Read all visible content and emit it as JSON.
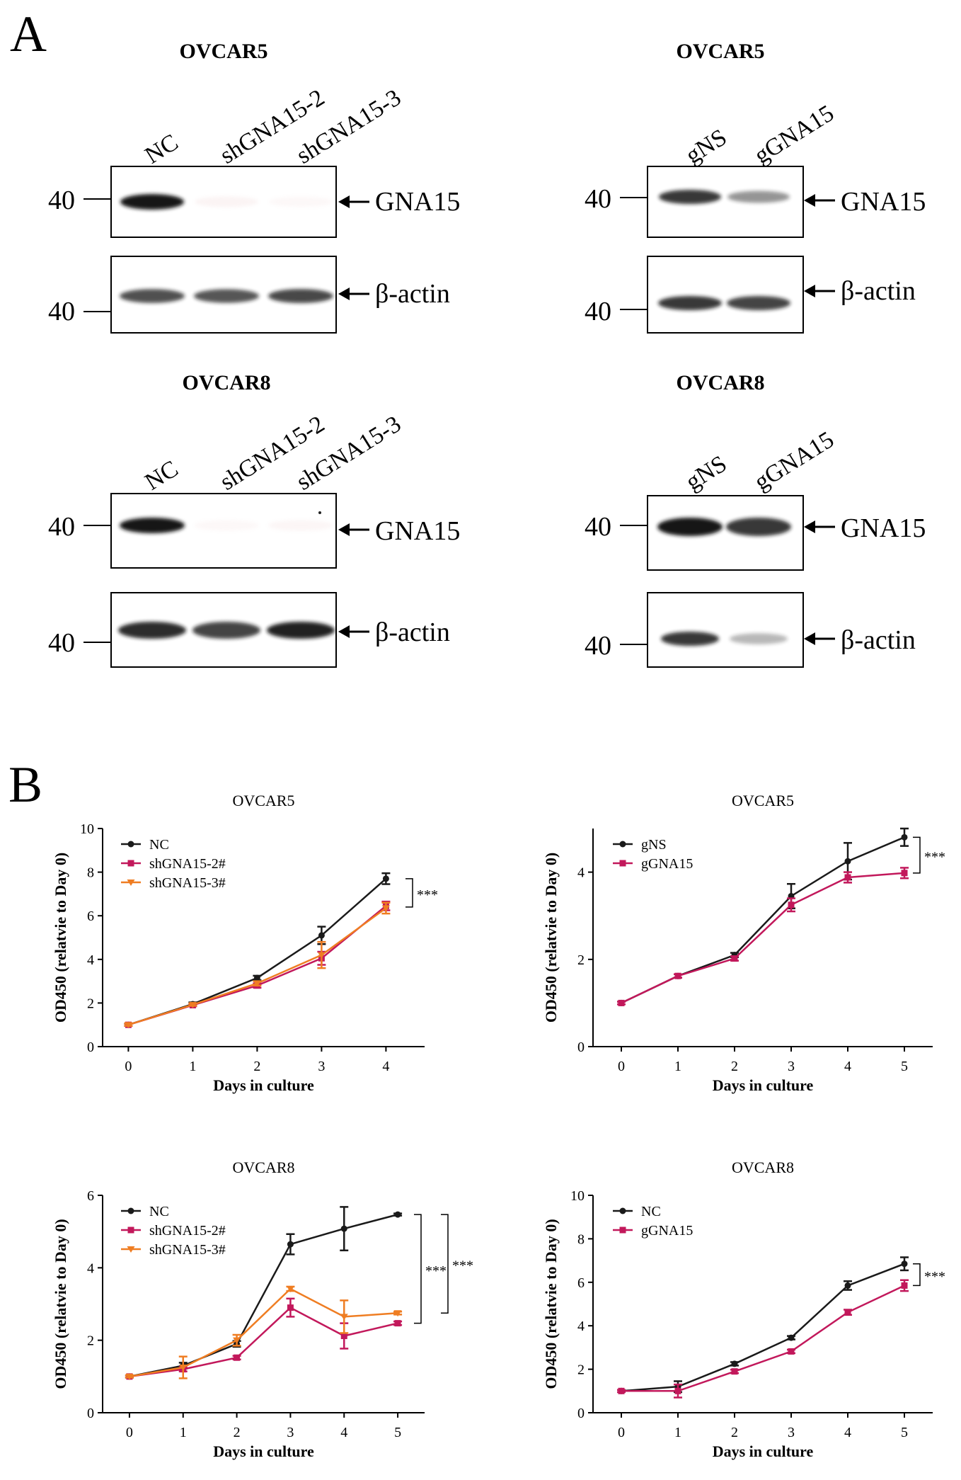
{
  "figure": {
    "panelA": {
      "letter": "A",
      "blots": [
        {
          "id": "ov5-sh",
          "title": "OVCAR5",
          "lanes": [
            "NC",
            "shGNA15-2",
            "shGNA15-3"
          ],
          "marker": "40",
          "rows": [
            {
              "target": "GNA15",
              "intensities": [
                1.0,
                0.12,
                0.03
              ]
            },
            {
              "target": "β-actin",
              "intensities": [
                0.75,
                0.72,
                0.78
              ]
            }
          ]
        },
        {
          "id": "ov5-g",
          "title": "OVCAR5",
          "lanes": [
            "gNS",
            "gGNA15"
          ],
          "marker": "40",
          "rows": [
            {
              "target": "GNA15",
              "intensities": [
                0.85,
                0.45
              ]
            },
            {
              "target": "β-actin",
              "intensities": [
                0.85,
                0.8
              ]
            }
          ]
        },
        {
          "id": "ov8-sh",
          "title": "OVCAR8",
          "lanes": [
            "NC",
            "shGNA15-2",
            "shGNA15-3"
          ],
          "marker": "40",
          "rows": [
            {
              "target": "GNA15",
              "intensities": [
                1.0,
                0.06,
                0.1
              ]
            },
            {
              "target": "β-actin",
              "intensities": [
                0.9,
                0.8,
                0.95
              ]
            }
          ]
        },
        {
          "id": "ov8-g",
          "title": "OVCAR8",
          "lanes": [
            "gNS",
            "gGNA15"
          ],
          "marker": "40",
          "rows": [
            {
              "target": "GNA15",
              "intensities": [
                1.0,
                0.85
              ]
            },
            {
              "target": "β-actin",
              "intensities": [
                0.85,
                0.3
              ]
            }
          ]
        }
      ]
    },
    "panelB": {
      "letter": "B"
    }
  },
  "chart_data": [
    {
      "type": "line",
      "title": "OVCAR5",
      "xlabel": "Days in culture",
      "ylabel": "OD450 (relatvie to Day 0)",
      "x": [
        0,
        1,
        2,
        3,
        4
      ],
      "xlim": [
        -0.4,
        4.6
      ],
      "ylim": [
        0,
        10
      ],
      "yticks": [
        0,
        2,
        4,
        6,
        8,
        10
      ],
      "series": [
        {
          "name": "NC",
          "color": "#1a1a1a",
          "marker": "circle",
          "values": [
            1.0,
            1.95,
            3.15,
            5.1,
            7.7
          ],
          "errors": [
            0.05,
            0.08,
            0.1,
            0.4,
            0.25
          ]
        },
        {
          "name": "shGNA15-2#",
          "color": "#c2185b",
          "marker": "square",
          "values": [
            1.0,
            1.9,
            2.8,
            4.05,
            6.45
          ],
          "errors": [
            0.05,
            0.05,
            0.1,
            0.3,
            0.2
          ]
        },
        {
          "name": "shGNA15-3#",
          "color": "#ef7d22",
          "marker": "triangle-down",
          "values": [
            1.0,
            1.92,
            2.9,
            4.2,
            6.35
          ],
          "errors": [
            0.05,
            0.05,
            0.1,
            0.6,
            0.25
          ]
        }
      ],
      "significance": [
        {
          "from": 7.7,
          "to": 6.4,
          "label": "***"
        }
      ]
    },
    {
      "type": "line",
      "title": "OVCAR5",
      "xlabel": "Days in culture",
      "ylabel": "OD450 (relatvie to Day 0)",
      "x": [
        0,
        1,
        2,
        3,
        4,
        5
      ],
      "xlim": [
        -0.5,
        5.5
      ],
      "ylim": [
        0,
        5
      ],
      "yticks": [
        0,
        2,
        4
      ],
      "series": [
        {
          "name": "gNS",
          "color": "#1a1a1a",
          "marker": "circle",
          "values": [
            1.0,
            1.62,
            2.1,
            3.45,
            4.25,
            4.8
          ],
          "errors": [
            0.03,
            0.04,
            0.05,
            0.28,
            0.42,
            0.2
          ]
        },
        {
          "name": "gGNA15",
          "color": "#c2185b",
          "marker": "square",
          "values": [
            1.0,
            1.62,
            2.02,
            3.25,
            3.88,
            3.98
          ],
          "errors": [
            0.03,
            0.04,
            0.05,
            0.15,
            0.12,
            0.12
          ]
        }
      ],
      "significance": [
        {
          "from": 4.8,
          "to": 3.98,
          "label": "***"
        }
      ]
    },
    {
      "type": "line",
      "title": "OVCAR8",
      "xlabel": "Days in culture",
      "ylabel": "OD450 (relatvie to Day 0)",
      "x": [
        0,
        1,
        2,
        3,
        4,
        5
      ],
      "xlim": [
        -0.5,
        5.5
      ],
      "ylim": [
        0,
        6
      ],
      "yticks": [
        0,
        2,
        4,
        6
      ],
      "series": [
        {
          "name": "NC",
          "color": "#1a1a1a",
          "marker": "circle",
          "values": [
            1.0,
            1.3,
            1.9,
            4.65,
            5.08,
            5.47
          ],
          "errors": [
            0.03,
            0.08,
            0.08,
            0.28,
            0.6,
            0.03
          ]
        },
        {
          "name": "shGNA15-2#",
          "color": "#c2185b",
          "marker": "square",
          "values": [
            1.0,
            1.2,
            1.52,
            2.9,
            2.12,
            2.47
          ],
          "errors": [
            0.03,
            0.06,
            0.05,
            0.25,
            0.35,
            0.05
          ]
        },
        {
          "name": "shGNA15-3#",
          "color": "#ef7d22",
          "marker": "triangle-down",
          "values": [
            1.0,
            1.25,
            2.0,
            3.42,
            2.65,
            2.75
          ],
          "errors": [
            0.03,
            0.3,
            0.15,
            0.06,
            0.45,
            0.04
          ]
        }
      ],
      "significance": [
        {
          "from": 5.47,
          "to": 2.47,
          "label": "***"
        },
        {
          "from": 5.47,
          "to": 2.75,
          "label": "***"
        }
      ]
    },
    {
      "type": "line",
      "title": "OVCAR8",
      "xlabel": "Days in culture",
      "ylabel": "OD450 (relatvie to Day 0)",
      "x": [
        0,
        1,
        2,
        3,
        4,
        5
      ],
      "xlim": [
        -0.5,
        5.5
      ],
      "ylim": [
        0,
        10
      ],
      "yticks": [
        0,
        2,
        4,
        6,
        8,
        10
      ],
      "series": [
        {
          "name": "NC",
          "color": "#1a1a1a",
          "marker": "circle",
          "values": [
            1.0,
            1.2,
            2.25,
            3.45,
            5.85,
            6.85
          ],
          "errors": [
            0.05,
            0.25,
            0.08,
            0.08,
            0.2,
            0.3
          ]
        },
        {
          "name": "gGNA15",
          "color": "#c2185b",
          "marker": "square",
          "values": [
            1.0,
            1.0,
            1.9,
            2.82,
            4.62,
            5.85
          ],
          "errors": [
            0.05,
            0.3,
            0.08,
            0.08,
            0.12,
            0.25
          ]
        }
      ],
      "significance": [
        {
          "from": 6.85,
          "to": 5.85,
          "label": "***"
        }
      ]
    }
  ]
}
